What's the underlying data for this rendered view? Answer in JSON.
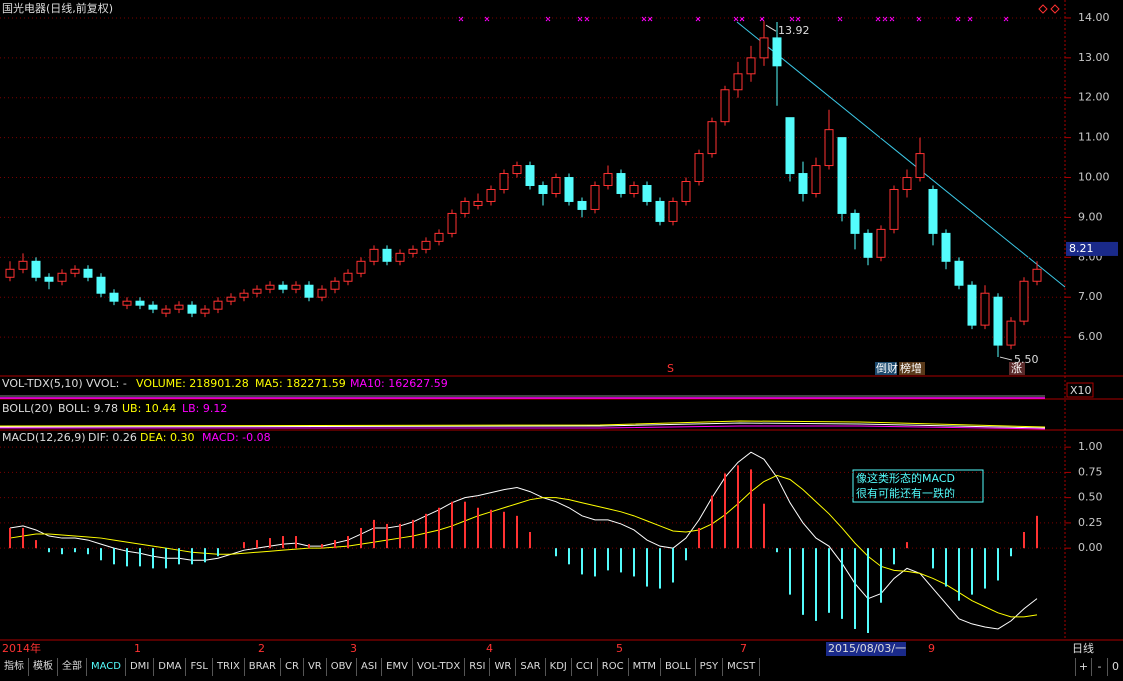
{
  "header": {
    "title": "国光电器(日线,前复权)"
  },
  "chart_data": [
    {
      "type": "candlestick",
      "up_color": "#ff3232",
      "down_color": "#54fcfc",
      "ylim": [
        5.05,
        14.45
      ],
      "yticks": [
        {
          "value": 14,
          "label": "14.00"
        },
        {
          "value": 13,
          "label": "13.00"
        },
        {
          "value": 12,
          "label": "12.00"
        },
        {
          "value": 11,
          "label": "11.00"
        },
        {
          "value": 10,
          "label": "10.00"
        },
        {
          "value": 9,
          "label": "9.00"
        },
        {
          "value": 8,
          "label": "8.00"
        },
        {
          "value": 7,
          "label": "7.00"
        },
        {
          "value": 6,
          "label": "6.00"
        }
      ],
      "grid": true,
      "current_price": {
        "value": 8.21,
        "label": "8.21"
      },
      "high_label": "13.92",
      "low_label": "5.50",
      "open": [
        7.5,
        7.7,
        7.9,
        7.5,
        7.4,
        7.6,
        7.7,
        7.5,
        7.1,
        6.8,
        6.9,
        6.8,
        6.6,
        6.7,
        6.8,
        6.6,
        6.7,
        6.9,
        7.0,
        7.1,
        7.2,
        7.3,
        7.2,
        7.3,
        7.0,
        7.2,
        7.4,
        7.6,
        7.9,
        8.2,
        7.9,
        8.1,
        8.2,
        8.4,
        8.6,
        9.1,
        9.3,
        9.4,
        9.7,
        10.1,
        10.3,
        9.8,
        9.6,
        10.0,
        9.4,
        9.2,
        9.8,
        10.1,
        9.6,
        9.8,
        9.4,
        8.9,
        9.4,
        9.9,
        10.6,
        11.4,
        12.2,
        12.6,
        13.0,
        13.5,
        11.5,
        10.1,
        9.6,
        10.3,
        11.0,
        9.1,
        8.6,
        8.0,
        8.7,
        9.7,
        10.0,
        9.7,
        8.6,
        7.9,
        7.3,
        6.3,
        7.0,
        5.8,
        6.4,
        7.4
      ],
      "high": [
        7.9,
        8.1,
        8.0,
        7.6,
        7.7,
        7.8,
        7.8,
        7.6,
        7.2,
        7.0,
        7.0,
        6.9,
        6.8,
        6.9,
        6.9,
        6.8,
        7.0,
        7.1,
        7.2,
        7.3,
        7.4,
        7.4,
        7.4,
        7.4,
        7.3,
        7.5,
        7.7,
        8.0,
        8.3,
        8.3,
        8.2,
        8.3,
        8.5,
        8.7,
        9.2,
        9.5,
        9.6,
        9.8,
        10.2,
        10.4,
        10.4,
        9.9,
        10.1,
        10.1,
        9.5,
        9.9,
        10.3,
        10.2,
        9.9,
        9.9,
        9.5,
        9.5,
        10.0,
        10.7,
        11.5,
        12.3,
        12.9,
        13.3,
        13.92,
        13.9,
        11.5,
        10.4,
        10.5,
        11.7,
        11.0,
        9.2,
        8.7,
        8.8,
        9.8,
        10.2,
        11.0,
        9.8,
        8.7,
        8.0,
        7.4,
        7.3,
        7.1,
        6.5,
        7.5,
        7.9
      ],
      "low": [
        7.4,
        7.6,
        7.4,
        7.2,
        7.3,
        7.5,
        7.4,
        7.0,
        6.8,
        6.7,
        6.7,
        6.6,
        6.5,
        6.6,
        6.5,
        6.5,
        6.6,
        6.8,
        6.9,
        7.0,
        7.1,
        7.1,
        7.1,
        6.9,
        6.9,
        7.1,
        7.3,
        7.5,
        7.8,
        7.8,
        7.8,
        8.0,
        8.1,
        8.3,
        8.5,
        9.0,
        9.2,
        9.3,
        9.6,
        10.0,
        9.7,
        9.3,
        9.5,
        9.3,
        9.0,
        9.1,
        9.7,
        9.5,
        9.5,
        9.3,
        8.8,
        8.8,
        9.3,
        9.8,
        10.5,
        11.3,
        12.0,
        12.4,
        12.8,
        11.8,
        9.9,
        9.4,
        9.5,
        10.2,
        8.9,
        8.2,
        7.8,
        7.9,
        8.6,
        9.5,
        9.9,
        8.3,
        7.7,
        7.2,
        6.2,
        6.2,
        5.5,
        5.7,
        6.3,
        7.3
      ],
      "close": [
        7.7,
        7.9,
        7.5,
        7.4,
        7.6,
        7.7,
        7.5,
        7.1,
        6.9,
        6.9,
        6.8,
        6.7,
        6.7,
        6.8,
        6.6,
        6.7,
        6.9,
        7.0,
        7.1,
        7.2,
        7.3,
        7.2,
        7.3,
        7.0,
        7.2,
        7.4,
        7.6,
        7.9,
        8.2,
        7.9,
        8.1,
        8.2,
        8.4,
        8.6,
        9.1,
        9.4,
        9.4,
        9.7,
        10.1,
        10.3,
        9.8,
        9.6,
        10.0,
        9.4,
        9.2,
        9.8,
        10.1,
        9.6,
        9.8,
        9.4,
        8.9,
        9.4,
        9.9,
        10.6,
        11.4,
        12.2,
        12.6,
        13.0,
        13.5,
        12.8,
        10.1,
        9.6,
        10.3,
        11.2,
        9.1,
        8.6,
        8.0,
        8.7,
        9.7,
        10.0,
        10.6,
        8.6,
        7.9,
        7.3,
        6.3,
        7.1,
        5.8,
        6.4,
        7.4,
        7.7
      ]
    },
    {
      "type": "macd",
      "ylim": [
        -0.83,
        1.15
      ],
      "yticks": [
        {
          "value": 1,
          "label": "1.00"
        },
        {
          "value": 0.75,
          "label": "0.75"
        },
        {
          "value": 0.5,
          "label": "0.50"
        },
        {
          "value": 0.25,
          "label": "0.25"
        },
        {
          "value": 0,
          "label": "0.00"
        }
      ],
      "series": [
        {
          "name": "DIF",
          "color": "#ffffff",
          "values": [
            0.2,
            0.22,
            0.18,
            0.12,
            0.1,
            0.1,
            0.08,
            0.04,
            0.0,
            -0.03,
            -0.05,
            -0.08,
            -0.1,
            -0.1,
            -0.12,
            -0.12,
            -0.1,
            -0.06,
            -0.02,
            0.0,
            0.02,
            0.04,
            0.05,
            0.02,
            0.02,
            0.05,
            0.08,
            0.14,
            0.2,
            0.2,
            0.22,
            0.26,
            0.32,
            0.38,
            0.45,
            0.5,
            0.52,
            0.55,
            0.58,
            0.6,
            0.56,
            0.5,
            0.46,
            0.4,
            0.32,
            0.28,
            0.28,
            0.24,
            0.18,
            0.08,
            0.02,
            0.0,
            0.1,
            0.28,
            0.5,
            0.7,
            0.85,
            0.95,
            0.88,
            0.7,
            0.45,
            0.25,
            0.1,
            0.02,
            -0.15,
            -0.35,
            -0.5,
            -0.45,
            -0.3,
            -0.2,
            -0.25,
            -0.4,
            -0.55,
            -0.7,
            -0.75,
            -0.78,
            -0.8,
            -0.72,
            -0.6,
            -0.5
          ]
        },
        {
          "name": "DEA",
          "color": "#ffff00",
          "values": [
            0.1,
            0.12,
            0.14,
            0.14,
            0.13,
            0.12,
            0.11,
            0.1,
            0.08,
            0.06,
            0.04,
            0.02,
            0.0,
            -0.02,
            -0.04,
            -0.05,
            -0.06,
            -0.06,
            -0.05,
            -0.04,
            -0.03,
            -0.02,
            -0.01,
            0.0,
            0.0,
            0.01,
            0.02,
            0.04,
            0.06,
            0.08,
            0.1,
            0.12,
            0.15,
            0.18,
            0.22,
            0.27,
            0.32,
            0.36,
            0.4,
            0.44,
            0.48,
            0.5,
            0.5,
            0.48,
            0.45,
            0.42,
            0.39,
            0.36,
            0.32,
            0.27,
            0.22,
            0.17,
            0.16,
            0.18,
            0.24,
            0.33,
            0.44,
            0.56,
            0.66,
            0.72,
            0.68,
            0.58,
            0.46,
            0.34,
            0.2,
            0.05,
            -0.08,
            -0.18,
            -0.22,
            -0.23,
            -0.25,
            -0.3,
            -0.36,
            -0.44,
            -0.52,
            -0.58,
            -0.64,
            -0.68,
            -0.68,
            -0.66
          ]
        },
        {
          "name": "MACD",
          "color": "#ff3232",
          "neg_color": "#54fcfc",
          "values": [
            0.2,
            0.2,
            0.08,
            -0.04,
            -0.06,
            -0.04,
            -0.06,
            -0.12,
            -0.16,
            -0.18,
            -0.18,
            -0.2,
            -0.2,
            -0.16,
            -0.16,
            -0.14,
            -0.08,
            0.0,
            0.06,
            0.08,
            0.1,
            0.12,
            0.12,
            0.04,
            0.04,
            0.08,
            0.12,
            0.2,
            0.28,
            0.24,
            0.24,
            0.28,
            0.34,
            0.4,
            0.46,
            0.46,
            0.4,
            0.38,
            0.36,
            0.32,
            0.16,
            0.0,
            -0.08,
            -0.16,
            -0.26,
            -0.28,
            -0.22,
            -0.24,
            -0.28,
            -0.38,
            -0.4,
            -0.34,
            -0.12,
            0.2,
            0.52,
            0.74,
            0.82,
            0.78,
            0.44,
            -0.04,
            -0.46,
            -0.66,
            -0.72,
            -0.64,
            -0.7,
            -0.8,
            -0.84,
            -0.54,
            -0.16,
            0.06,
            0.0,
            -0.2,
            -0.38,
            -0.52,
            -0.46,
            -0.4,
            -0.32,
            -0.08,
            0.16,
            0.32
          ]
        }
      ]
    }
  ],
  "signals": {
    "s": "S",
    "tag1": "倒财",
    "tag2": "榜增",
    "tag3": "涨"
  },
  "vol_header": {
    "name": "VOL-TDX(5,10)",
    "vvol": "VVOL: -",
    "volume": "VOLUME: 218901.28",
    "ma5": "MA5: 182271.59",
    "ma10": "MA10: 162627.59",
    "scale": "X10"
  },
  "boll_header": {
    "name": "BOLL(20)",
    "boll": "BOLL: 9.78",
    "ub": "UB: 10.44",
    "lb": "LB: 9.12"
  },
  "macd_header": {
    "name": "MACD(12,26,9)",
    "dif": "DIF: 0.26",
    "dea": "DEA: 0.30",
    "macd": "MACD: -0.08"
  },
  "annotation": [
    "像这类形态的MACD",
    "很有可能还有一跌的"
  ],
  "x_labels": [
    "2014年",
    "1",
    "2",
    "3",
    "4",
    "5",
    "7",
    "2015/08/03/一",
    "9"
  ],
  "period": "日线",
  "tabs": [
    "指标",
    "模板",
    "全部",
    "MACD",
    "DMI",
    "DMA",
    "FSL",
    "TRIX",
    "BRAR",
    "CR",
    "VR",
    "OBV",
    "ASI",
    "EMV",
    "VOL-TDX",
    "RSI",
    "WR",
    "SAR",
    "KDJ",
    "CCI",
    "ROC",
    "MTM",
    "BOLL",
    "PSY",
    "MCST"
  ],
  "controls": [
    "+",
    "-",
    "0"
  ]
}
